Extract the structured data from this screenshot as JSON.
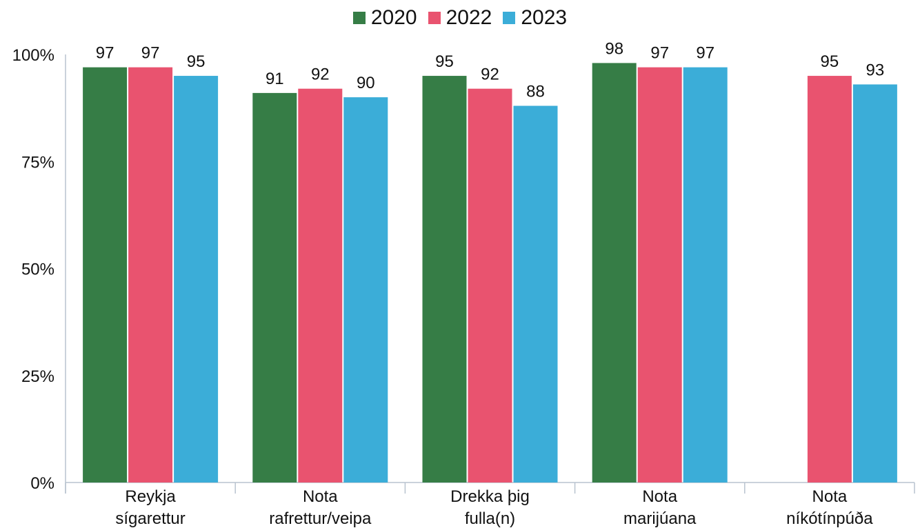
{
  "chart_data": {
    "type": "bar",
    "categories": [
      [
        "Reykja",
        "sígarettur"
      ],
      [
        "Nota",
        "rafrettur/veipa"
      ],
      [
        "Drekka þig",
        "fulla(n)"
      ],
      [
        "Nota",
        "marijúana"
      ],
      [
        "Nota",
        "níkótínpúða"
      ]
    ],
    "series": [
      {
        "name": "2020",
        "color": "#367d46",
        "values": [
          97,
          91,
          95,
          98,
          null
        ]
      },
      {
        "name": "2022",
        "color": "#e9536f",
        "values": [
          97,
          92,
          92,
          97,
          95
        ]
      },
      {
        "name": "2023",
        "color": "#3badd8",
        "values": [
          95,
          90,
          88,
          97,
          93
        ]
      }
    ],
    "y_ticks": [
      "0%",
      "25%",
      "50%",
      "75%",
      "100%"
    ],
    "ylim": [
      0,
      100
    ],
    "grid": false,
    "legend_position": "top-center"
  }
}
